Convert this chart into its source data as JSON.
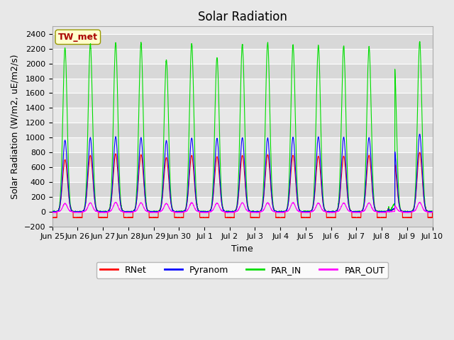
{
  "title": "Solar Radiation",
  "ylabel": "Solar Radiation (W/m2, uE/m2/s)",
  "xlabel": "Time",
  "ylim": [
    -200,
    2500
  ],
  "yticks": [
    -200,
    0,
    200,
    400,
    600,
    800,
    1000,
    1200,
    1400,
    1600,
    1800,
    2000,
    2200,
    2400
  ],
  "plot_bg_color": "#e8e8e8",
  "band_colors": [
    "#d8d8d8",
    "#e8e8e8"
  ],
  "legend_labels": [
    "RNet",
    "Pyranom",
    "PAR_IN",
    "PAR_OUT"
  ],
  "legend_colors": [
    "#ff0000",
    "#0000ff",
    "#00dd00",
    "#ff00ff"
  ],
  "station_label": "TW_met",
  "station_label_color": "#aa0000",
  "station_box_facecolor": "#ffffcc",
  "station_box_edgecolor": "#999900",
  "n_days": 15,
  "xtick_labels": [
    "Jun 25",
    "Jun 26",
    "Jun 27",
    "Jun 28",
    "Jun 29",
    "Jun 30",
    "Jul 1",
    "Jul 2",
    "Jul 3",
    "Jul 4",
    "Jul 5",
    "Jul 6",
    "Jul 7",
    "Jul 8",
    "Jul 9",
    "Jul 10"
  ],
  "line_width": 0.8,
  "grid_color": "#ffffff",
  "title_fontsize": 12,
  "axis_fontsize": 9,
  "tick_fontsize": 8,
  "figsize": [
    6.4,
    4.8
  ],
  "dpi": 100
}
